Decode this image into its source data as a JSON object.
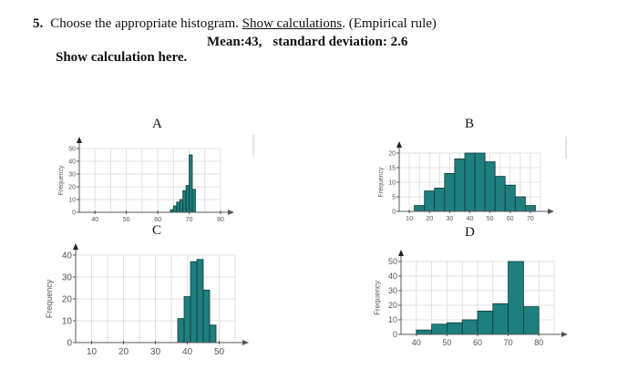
{
  "question": {
    "number": "5.",
    "text_before": "Choose the appropriate histogram. ",
    "underlined": "Show calculations",
    "text_after": ". (Empirical rule)",
    "given": {
      "mean": "Mean:43,",
      "sd": "standard deviation: 2.6"
    },
    "show_calc": "Show calculation here."
  },
  "panels": {
    "A": {
      "label": "A"
    },
    "B": {
      "label": "B"
    },
    "C": {
      "label": "C"
    },
    "D": {
      "label": "D"
    }
  },
  "colors": {
    "bar": "#1f7f7f",
    "bar_stroke": "#0d3a3a",
    "grid": "#d9d9d9",
    "axis": "#555555",
    "tick_text": "#555555"
  },
  "chart_data": [
    {
      "id": "A",
      "type": "bar",
      "title": "A",
      "xlabel": "",
      "ylabel": "Frequency",
      "xlim": [
        35,
        80
      ],
      "ylim": [
        0,
        50
      ],
      "xticks": [
        40,
        50,
        60,
        70,
        80
      ],
      "yticks": [
        0,
        10,
        20,
        30,
        40,
        50
      ],
      "bins": [
        [
          64,
          65
        ],
        [
          65,
          66
        ],
        [
          66,
          67
        ],
        [
          67,
          68
        ],
        [
          68,
          69
        ],
        [
          69,
          70
        ],
        [
          70,
          71
        ],
        [
          71,
          72
        ]
      ],
      "values": [
        2,
        5,
        8,
        10,
        17,
        21,
        45,
        18
      ],
      "grid": true
    },
    {
      "id": "B",
      "type": "bar",
      "title": "B",
      "xlabel": "",
      "ylabel": "Frequency",
      "xlim": [
        5,
        75
      ],
      "ylim": [
        0,
        20
      ],
      "xticks": [
        10,
        20,
        30,
        40,
        50,
        60,
        70
      ],
      "yticks": [
        0,
        5,
        10,
        15,
        20
      ],
      "bins": [
        [
          12.5,
          17.5
        ],
        [
          17.5,
          22.5
        ],
        [
          22.5,
          27.5
        ],
        [
          27.5,
          32.5
        ],
        [
          32.5,
          37.5
        ],
        [
          37.5,
          42.5
        ],
        [
          42.5,
          47.5
        ],
        [
          47.5,
          52.5
        ],
        [
          52.5,
          57.5
        ],
        [
          57.5,
          62.5
        ],
        [
          62.5,
          67.5
        ],
        [
          67.5,
          72.5
        ]
      ],
      "values": [
        2,
        7,
        8,
        13,
        18,
        20,
        20,
        17,
        12,
        9,
        5,
        2
      ],
      "grid": true
    },
    {
      "id": "C",
      "type": "bar",
      "title": "C",
      "xlabel": "",
      "ylabel": "Frequency",
      "xlim": [
        5,
        55
      ],
      "ylim": [
        0,
        40
      ],
      "xticks": [
        10,
        20,
        30,
        40,
        50
      ],
      "yticks": [
        0,
        10,
        20,
        30,
        40
      ],
      "bins": [
        [
          37,
          39
        ],
        [
          39,
          41
        ],
        [
          41,
          43
        ],
        [
          43,
          45
        ],
        [
          45,
          47
        ],
        [
          47,
          49
        ]
      ],
      "values": [
        11,
        21,
        37,
        38,
        24,
        8
      ],
      "grid": true
    },
    {
      "id": "D",
      "type": "bar",
      "title": "D",
      "xlabel": "",
      "ylabel": "Frequency",
      "xlim": [
        35,
        85
      ],
      "ylim": [
        0,
        50
      ],
      "xticks": [
        40,
        50,
        60,
        70,
        80
      ],
      "yticks": [
        0,
        10,
        20,
        30,
        40,
        50
      ],
      "bins": [
        [
          40,
          45
        ],
        [
          45,
          50
        ],
        [
          50,
          55
        ],
        [
          55,
          60
        ],
        [
          60,
          65
        ],
        [
          65,
          70
        ],
        [
          70,
          75
        ],
        [
          75,
          80
        ]
      ],
      "values": [
        3,
        7,
        8,
        10,
        16,
        21,
        50,
        19
      ],
      "grid": true
    }
  ]
}
